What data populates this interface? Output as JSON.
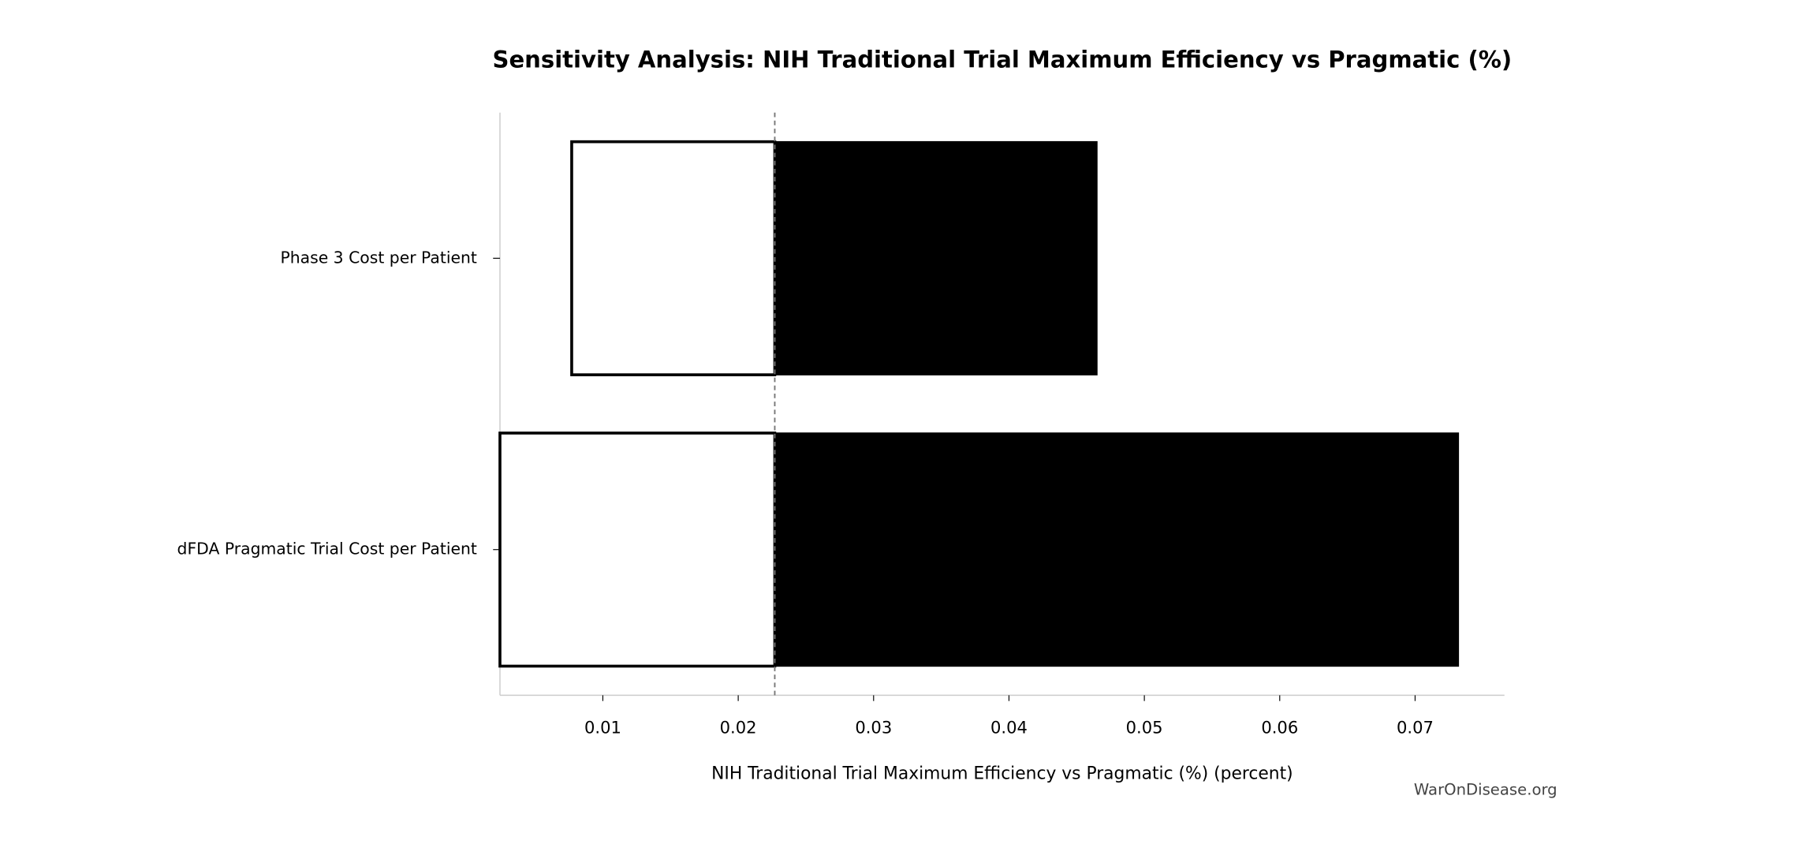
{
  "chart_data": {
    "type": "tornado",
    "title": "Sensitivity Analysis: NIH Traditional Trial Maximum Efficiency vs Pragmatic (%)",
    "x_label": "NIH Traditional Trial Maximum Efficiency vs Pragmatic (%) (percent)",
    "watermark": "WarOnDisease.org",
    "categories": [
      "Phase 3 Cost per Patient",
      "dFDA Pragmatic Trial Cost per Patient"
    ],
    "baseline": 0.0227,
    "low_values": [
      0.0077,
      0.0024
    ],
    "high_values": [
      0.0465,
      0.0732
    ],
    "low_color": "#ffffff",
    "high_color": "#000000",
    "xlim": [
      0.0024,
      0.0766
    ],
    "xticks": [
      0.01,
      0.02,
      0.03,
      0.04,
      0.05,
      0.06,
      0.07
    ]
  }
}
